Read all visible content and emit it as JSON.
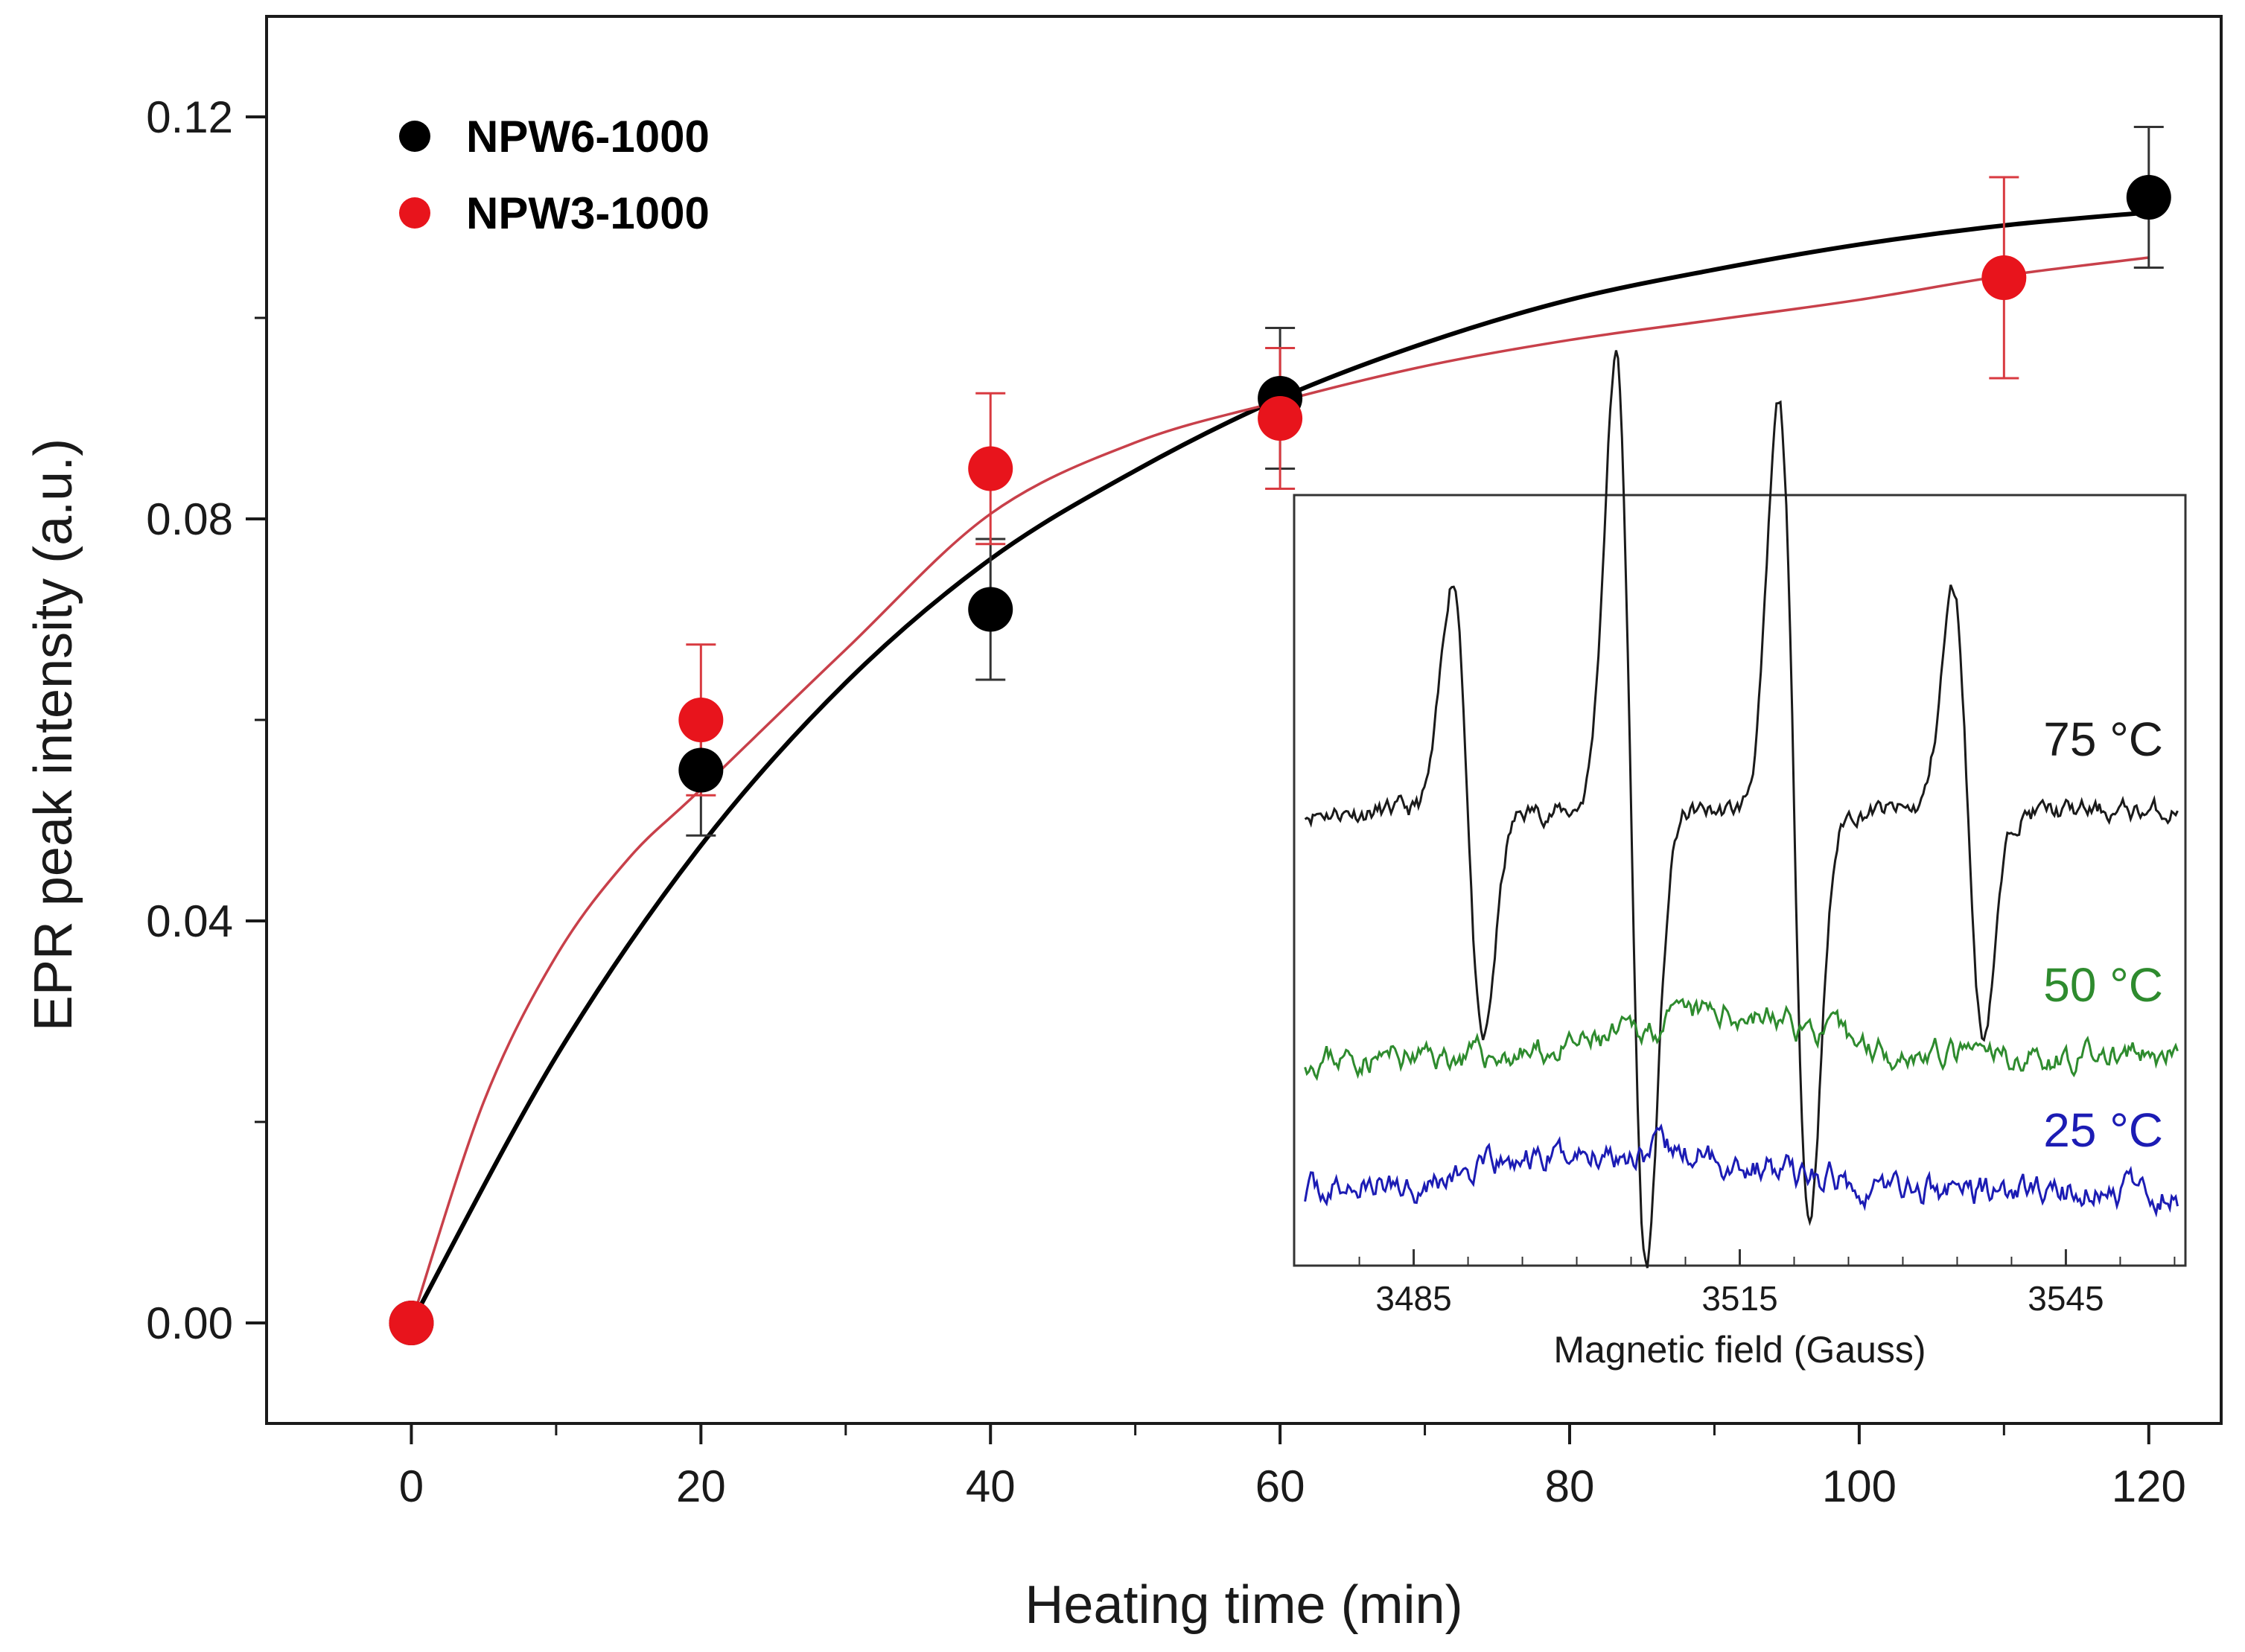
{
  "chart_data": [
    {
      "type": "scatter",
      "xlabel": "Heating time (min)",
      "ylabel": "EPR peak intensity (a.u.)",
      "xlim": [
        -10,
        125
      ],
      "ylim": [
        -0.01,
        0.13
      ],
      "x_ticks": [
        "0",
        "20",
        "40",
        "60",
        "80",
        "100",
        "120"
      ],
      "y_ticks": [
        "0.00",
        "0.04",
        "0.08",
        "0.12"
      ],
      "legend_position": "top-left",
      "series": [
        {
          "name": "NPW6-1000",
          "color": "#000000",
          "points": [
            {
              "x": 0,
              "y": 0.0,
              "err": 0
            },
            {
              "x": 20,
              "y": 0.055,
              "err": 0.0065
            },
            {
              "x": 40,
              "y": 0.071,
              "err": 0.007
            },
            {
              "x": 60,
              "y": 0.092,
              "err": 0.007
            },
            {
              "x": 120,
              "y": 0.112,
              "err": 0.007
            }
          ],
          "fit": {
            "x": [
              0,
              10,
              20,
              30,
              40,
              50,
              60,
              70,
              80,
              90,
              100,
              110,
              120
            ],
            "y": [
              0,
              0.0265,
              0.0475,
              0.0637,
              0.076,
              0.0848,
              0.092,
              0.0975,
              0.1018,
              0.1048,
              0.1073,
              0.1092,
              0.1105
            ]
          }
        },
        {
          "name": "NPW3-1000",
          "color": "#e8141c",
          "points": [
            {
              "x": 0,
              "y": 0.0,
              "err": 0
            },
            {
              "x": 20,
              "y": 0.06,
              "err": 0.0075
            },
            {
              "x": 40,
              "y": 0.085,
              "err": 0.0075
            },
            {
              "x": 60,
              "y": 0.09,
              "err": 0.007
            },
            {
              "x": 110,
              "y": 0.104,
              "err": 0.01
            }
          ],
          "fit": {
            "x": [
              0,
              5,
              10,
              15,
              20,
              30,
              40,
              50,
              60,
              70,
              80,
              90,
              100,
              110,
              120
            ],
            "y": [
              0,
              0.022,
              0.0365,
              0.0462,
              0.0531,
              0.067,
              0.0805,
              0.0876,
              0.0917,
              0.0952,
              0.0978,
              0.0998,
              0.1018,
              0.1042,
              0.106
            ]
          }
        }
      ]
    },
    {
      "type": "line",
      "xlabel": "Magnetic field (Gauss)",
      "xlim": [
        3474,
        3556
      ],
      "x_ticks": [
        "3485",
        "3515",
        "3545"
      ],
      "y_ticks_shown": false,
      "series": [
        {
          "name": "75 °C",
          "color": "#1a1a1a",
          "baseline": 0,
          "noise_seed": 11,
          "noise_amp": 0.07,
          "peaks": [
            {
              "pos": 3490,
              "amp": 0.95,
              "w": 1.4
            },
            {
              "pos": 3505,
              "amp": 1.85,
              "w": 1.4
            },
            {
              "pos": 3520,
              "amp": 1.65,
              "w": 1.4
            },
            {
              "pos": 3536,
              "amp": 0.9,
              "w": 1.4
            }
          ]
        },
        {
          "name": "50 °C",
          "color": "#2e8b2e",
          "baseline": -1.0,
          "noise_seed": 23,
          "noise_amp": 0.09,
          "bump": {
            "center": 3514,
            "amp": 0.18,
            "w": 8
          }
        },
        {
          "name": "25 °C",
          "color": "#1c1cb4",
          "baseline": -1.55,
          "noise_seed": 37,
          "noise_amp": 0.1,
          "bump": {
            "center": 3505,
            "amp": 0.17,
            "w": 12
          }
        }
      ]
    }
  ]
}
